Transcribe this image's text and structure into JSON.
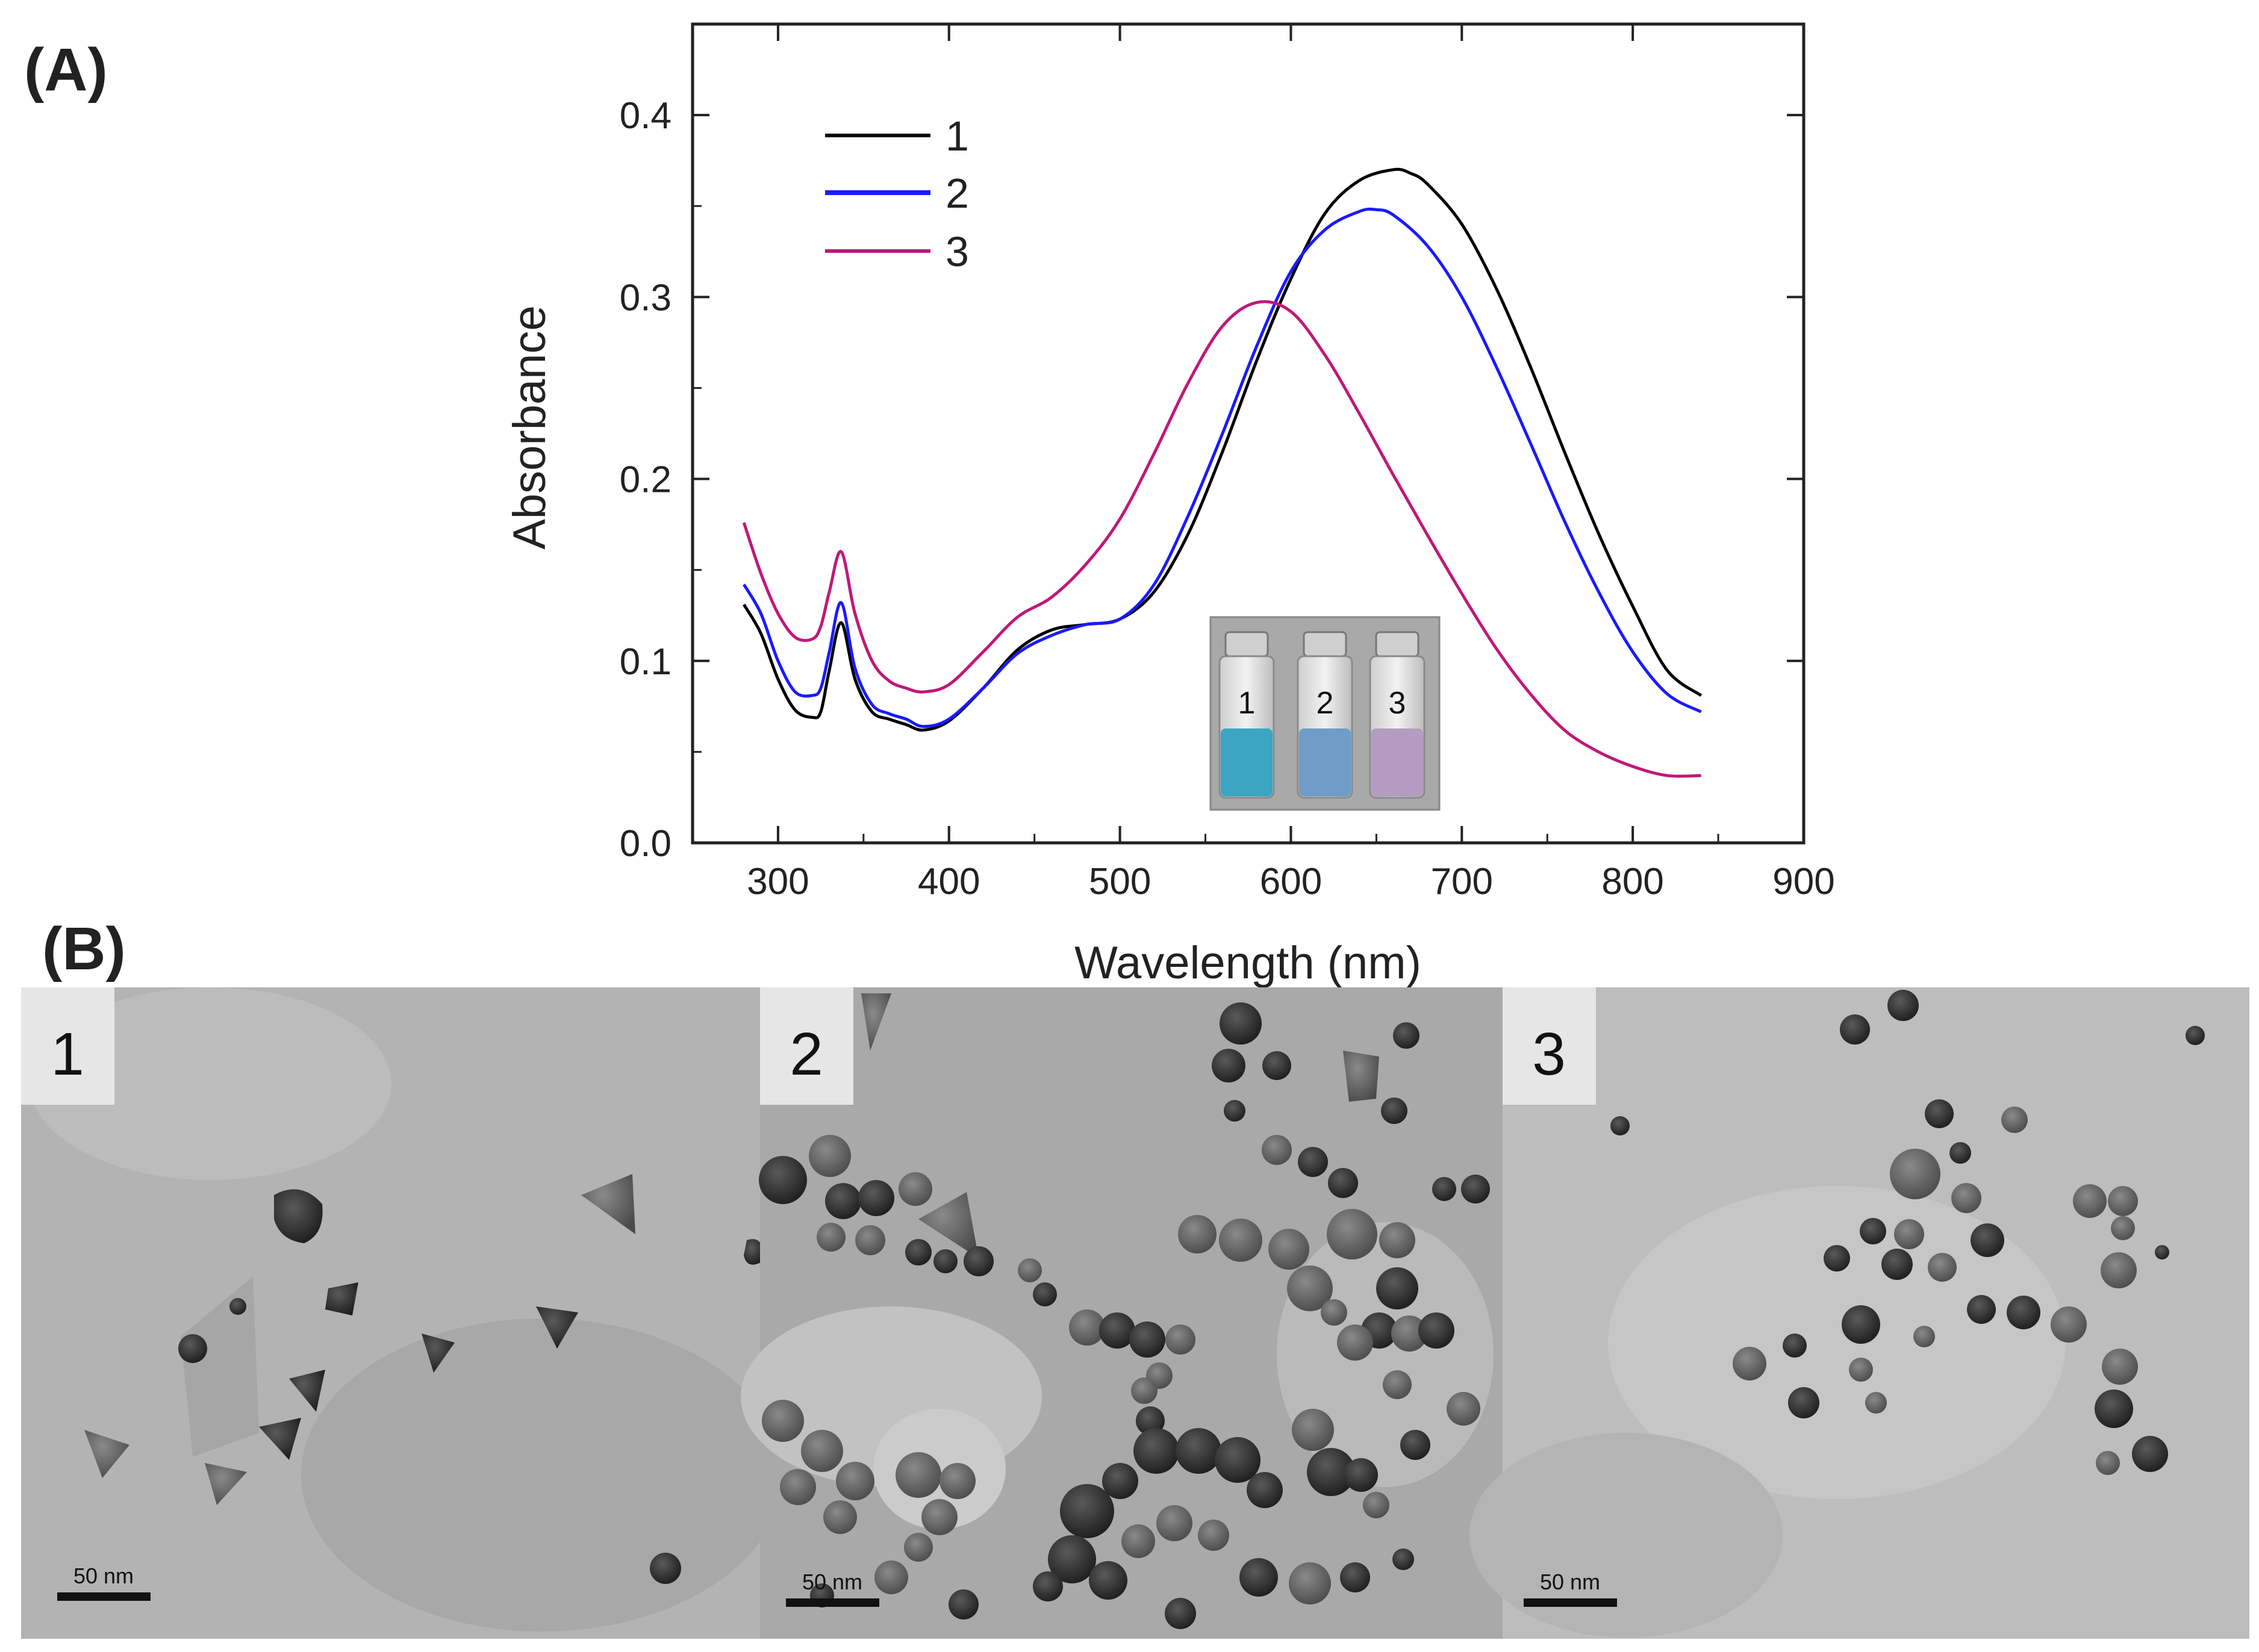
{
  "panel_a": {
    "label": "(A)"
  },
  "panel_b": {
    "label": "(B)"
  },
  "chart_data": {
    "type": "line",
    "title": "",
    "xlabel": "Wavelength (nm)",
    "ylabel": "Absorbance",
    "xlim": [
      250,
      900
    ],
    "ylim": [
      0,
      0.45
    ],
    "xticks": [
      300,
      400,
      500,
      600,
      700,
      800,
      900
    ],
    "yticks": [
      0.0,
      0.1,
      0.2,
      0.3,
      0.4
    ],
    "xtick_labels": [
      "300",
      "400",
      "500",
      "600",
      "700",
      "800",
      "900"
    ],
    "ytick_labels": [
      "0.0",
      "0.1",
      "0.2",
      "0.3",
      "0.4"
    ],
    "grid": false,
    "legend_position": "top-left",
    "series": [
      {
        "name": "1",
        "color": "#000000",
        "x": [
          280,
          290,
          300,
          310,
          320,
          325,
          330,
          337,
          345,
          355,
          365,
          375,
          385,
          400,
          420,
          440,
          460,
          480,
          500,
          520,
          540,
          560,
          580,
          600,
          620,
          640,
          660,
          670,
          680,
          700,
          720,
          740,
          760,
          780,
          800,
          820,
          840
        ],
        "y": [
          0.131,
          0.115,
          0.09,
          0.073,
          0.069,
          0.072,
          0.095,
          0.121,
          0.09,
          0.072,
          0.068,
          0.065,
          0.062,
          0.067,
          0.085,
          0.106,
          0.117,
          0.12,
          0.123,
          0.138,
          0.17,
          0.215,
          0.265,
          0.31,
          0.346,
          0.364,
          0.37,
          0.368,
          0.362,
          0.34,
          0.305,
          0.262,
          0.215,
          0.17,
          0.13,
          0.095,
          0.081
        ]
      },
      {
        "name": "2",
        "color": "#1a1aff",
        "x": [
          280,
          290,
          300,
          310,
          320,
          325,
          330,
          337,
          345,
          355,
          365,
          375,
          385,
          400,
          420,
          440,
          460,
          480,
          500,
          520,
          540,
          560,
          580,
          600,
          620,
          640,
          650,
          660,
          680,
          700,
          720,
          740,
          760,
          780,
          800,
          820,
          840
        ],
        "y": [
          0.142,
          0.126,
          0.1,
          0.083,
          0.081,
          0.085,
          0.105,
          0.132,
          0.096,
          0.076,
          0.071,
          0.068,
          0.064,
          0.068,
          0.085,
          0.104,
          0.114,
          0.12,
          0.123,
          0.142,
          0.18,
          0.225,
          0.273,
          0.314,
          0.337,
          0.347,
          0.348,
          0.345,
          0.328,
          0.3,
          0.262,
          0.22,
          0.177,
          0.138,
          0.105,
          0.082,
          0.072
        ]
      },
      {
        "name": "3",
        "color": "#c0187a",
        "x": [
          280,
          290,
          300,
          310,
          320,
          325,
          330,
          337,
          345,
          355,
          365,
          375,
          385,
          400,
          420,
          440,
          460,
          480,
          500,
          520,
          540,
          560,
          580,
          600,
          620,
          640,
          660,
          680,
          700,
          720,
          740,
          760,
          780,
          800,
          820,
          840
        ],
        "y": [
          0.176,
          0.148,
          0.126,
          0.113,
          0.112,
          0.119,
          0.138,
          0.16,
          0.126,
          0.1,
          0.089,
          0.085,
          0.083,
          0.087,
          0.105,
          0.124,
          0.135,
          0.153,
          0.178,
          0.214,
          0.253,
          0.284,
          0.297,
          0.292,
          0.268,
          0.236,
          0.202,
          0.169,
          0.137,
          0.107,
          0.082,
          0.062,
          0.05,
          0.042,
          0.037,
          0.037
        ]
      }
    ]
  },
  "inset": {
    "vials": [
      {
        "label": "1",
        "color": "#3aa6c2"
      },
      {
        "label": "2",
        "color": "#6f9dc8"
      },
      {
        "label": "3",
        "color": "#b49cc0"
      }
    ]
  },
  "tem_panels": [
    {
      "label": "1",
      "scale_bar": "50 nm"
    },
    {
      "label": "2",
      "scale_bar": "50 nm"
    },
    {
      "label": "3",
      "scale_bar": "50 nm"
    }
  ],
  "colors": {
    "axis": "#222222",
    "tem_background": "#b5b5b5",
    "particle": "#2a2a2a",
    "inset_background": "#a9a9a9"
  }
}
